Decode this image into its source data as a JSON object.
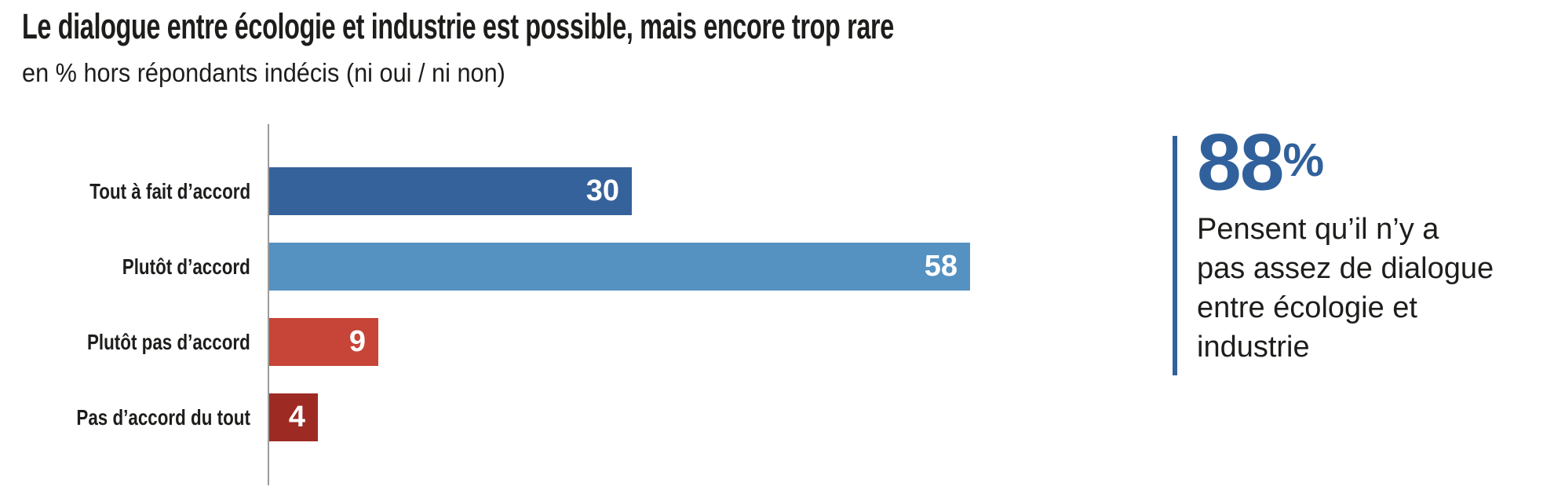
{
  "title": "Le dialogue entre écologie et industrie est possible, mais encore trop rare",
  "subtitle": "en % hors répondants indécis (ni oui / ni non)",
  "callout": {
    "value": "88",
    "percent_sign": "%",
    "text": "Pensent qu’il n’y a\npas assez de dialogue\nentre écologie et\nindustrie",
    "accent_color": "#31619c"
  },
  "chart_data": {
    "type": "bar",
    "orientation": "horizontal",
    "title": "Le dialogue entre écologie et industrie est possible, mais encore trop rare",
    "subtitle": "en % hors répondants indécis (ni oui / ni non)",
    "categories": [
      "Tout à fait d’accord",
      "Plutôt d’accord",
      "Plutôt pas d’accord",
      "Pas d’accord du tout"
    ],
    "values": [
      30,
      58,
      9,
      4
    ],
    "unit": "%",
    "colors": [
      "#36629b",
      "#5591c1",
      "#c64438",
      "#9e2b23"
    ],
    "value_label_color": "#ffffff",
    "axis_color": "#9b9b9b",
    "xlim": [
      0,
      100
    ],
    "grid": false,
    "legend": false,
    "value_labels_position": "inside-end"
  }
}
